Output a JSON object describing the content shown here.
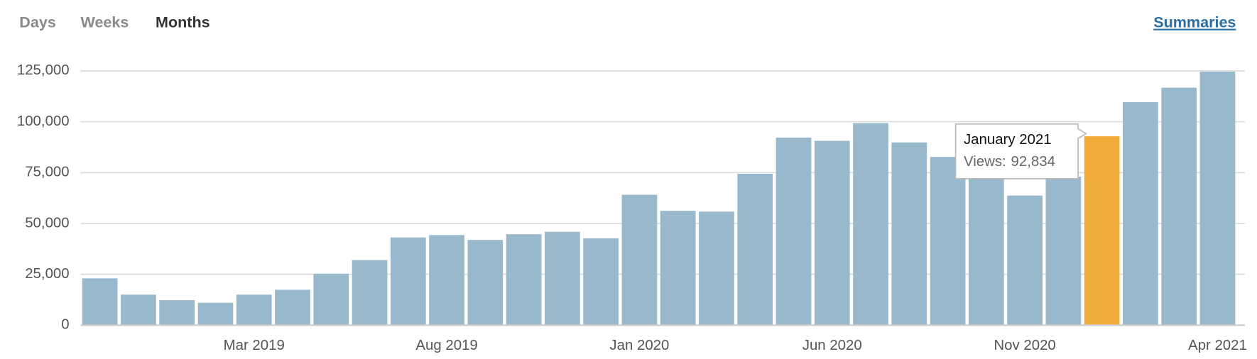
{
  "nav": {
    "tabs": [
      "Days",
      "Weeks",
      "Months"
    ],
    "active": "Months",
    "link": "Summaries"
  },
  "chart_data": {
    "type": "bar",
    "categories": [
      null,
      null,
      null,
      null,
      "Mar 2019",
      null,
      null,
      null,
      null,
      "Aug 2019",
      null,
      null,
      null,
      null,
      "Jan 2020",
      null,
      null,
      null,
      null,
      "Jun 2020",
      null,
      null,
      null,
      null,
      "Nov 2020",
      null,
      null,
      null,
      null,
      "Apr 2021"
    ],
    "series": [
      {
        "name": "Views",
        "color": "#98b8cc",
        "values": [
          23000,
          15000,
          12300,
          11000,
          15000,
          17400,
          25300,
          32000,
          43100,
          44300,
          41900,
          44700,
          45900,
          42700,
          64100,
          56200,
          55800,
          74400,
          92200,
          90600,
          99300,
          89800,
          82700,
          75000,
          63700,
          73000,
          92834,
          109600,
          116700,
          124600
        ]
      }
    ],
    "highlight": {
      "index": 26,
      "color": "#f0ad3c"
    },
    "tooltip": {
      "title": "January 2021",
      "label": "Views:",
      "value_label": "92,834"
    },
    "ylim": [
      0,
      125000
    ],
    "yticks": [
      0,
      {
        "value": 25000,
        "label": "25,000"
      },
      {
        "value": 50000,
        "label": "50,000"
      },
      {
        "value": 75000,
        "label": "75,000"
      },
      {
        "value": 100000,
        "label": "100,000"
      },
      {
        "value": 125000,
        "label": "125,000"
      }
    ],
    "grid": true
  }
}
